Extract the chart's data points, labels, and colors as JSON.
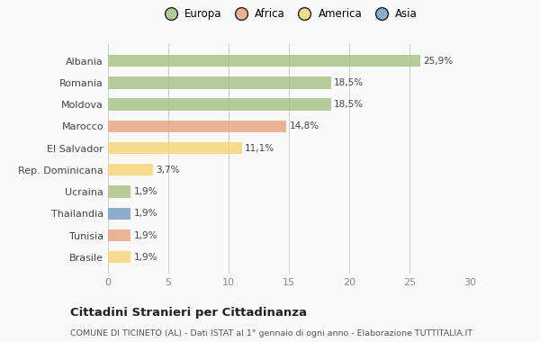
{
  "categories": [
    "Albania",
    "Romania",
    "Moldova",
    "Marocco",
    "El Salvador",
    "Rep. Dominicana",
    "Ucraina",
    "Thailandia",
    "Tunisia",
    "Brasile"
  ],
  "values": [
    25.9,
    18.5,
    18.5,
    14.8,
    11.1,
    3.7,
    1.9,
    1.9,
    1.9,
    1.9
  ],
  "labels": [
    "25,9%",
    "18,5%",
    "18,5%",
    "14,8%",
    "11,1%",
    "3,7%",
    "1,9%",
    "1,9%",
    "1,9%",
    "1,9%"
  ],
  "colors": [
    "#a8c48a",
    "#a8c48a",
    "#a8c48a",
    "#e8a882",
    "#f5d67a",
    "#f5d67a",
    "#a8c48a",
    "#7a9fc4",
    "#e8a882",
    "#f5d67a"
  ],
  "legend": [
    {
      "label": "Europa",
      "color": "#a8c48a"
    },
    {
      "label": "Africa",
      "color": "#e8a882"
    },
    {
      "label": "America",
      "color": "#f5d67a"
    },
    {
      "label": "Asia",
      "color": "#7a9fc4"
    }
  ],
  "xlim": [
    0,
    30
  ],
  "xticks": [
    0,
    5,
    10,
    15,
    20,
    25,
    30
  ],
  "title": "Cittadini Stranieri per Cittadinanza",
  "subtitle": "COMUNE DI TICINETO (AL) - Dati ISTAT al 1° gennaio di ogni anno - Elaborazione TUTTITALIA.IT",
  "background_color": "#f9f9f9",
  "bar_height": 0.55
}
